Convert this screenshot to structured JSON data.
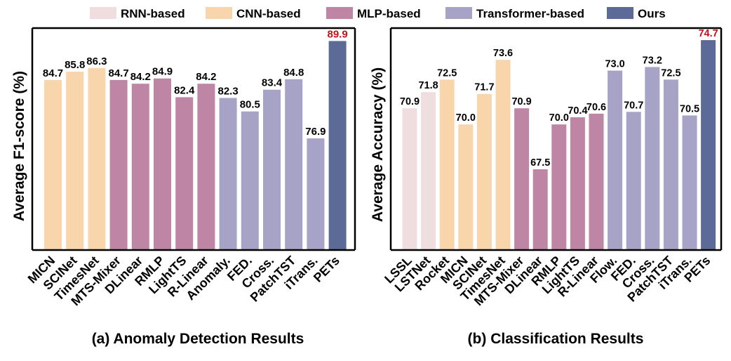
{
  "legend": {
    "items": [
      {
        "label": "RNN-based",
        "color": "#f0dde0"
      },
      {
        "label": "CNN-based",
        "color": "#f8d5aa"
      },
      {
        "label": "MLP-based",
        "color": "#be85a5"
      },
      {
        "label": "Transformer-based",
        "color": "#a6a3c6"
      },
      {
        "label": "Ours",
        "color": "#5c6a97"
      }
    ]
  },
  "highlight_color": "#c0141a",
  "chart_data": [
    {
      "type": "bar",
      "title": "(a) Anomaly Detection Results",
      "ylabel": "Average F1-score (%)",
      "xlabel": "",
      "ylim": [
        62,
        90.5
      ],
      "grid": false,
      "legend_position": "top",
      "categories": [
        "MICN",
        "SCINet",
        "TimesNet",
        "MTS-Mixer",
        "DLinear",
        "RMLP",
        "LightTS",
        "R-Linear",
        "Anomaly.",
        "FED.",
        "Cross.",
        "PatchTST",
        "iTrans.",
        "PETs"
      ],
      "values": [
        84.7,
        85.8,
        86.3,
        84.7,
        84.2,
        84.9,
        82.4,
        84.2,
        82.3,
        80.5,
        83.4,
        84.8,
        76.9,
        89.9
      ],
      "value_labels": [
        "84.7",
        "85.8",
        "86.3",
        "84.7",
        "84.2",
        "84.9",
        "82.4",
        "84.2",
        "82.3",
        "80.5",
        "83.4",
        "84.8",
        "76.9",
        "89.9"
      ],
      "groups": [
        1,
        1,
        1,
        2,
        2,
        2,
        2,
        2,
        3,
        3,
        3,
        3,
        3,
        4
      ],
      "highlight": [
        13
      ]
    },
    {
      "type": "bar",
      "title": "(b) Classification Results",
      "ylabel": "Average Accuracy (%)",
      "xlabel": "",
      "ylim": [
        63,
        74.9
      ],
      "grid": false,
      "legend_position": "top",
      "categories": [
        "LSSL",
        "LSTNet",
        "Rocket",
        "MICN",
        "SCINet",
        "TimesNet",
        "MTS-Mixer",
        "DLinear",
        "RMLP",
        "LightTS",
        "R-Linear",
        "Flow.",
        "FED.",
        "Cross.",
        "PatchTST",
        "iTrans.",
        "PETs"
      ],
      "values": [
        70.9,
        71.8,
        72.5,
        70.0,
        71.7,
        73.6,
        70.9,
        67.5,
        70.0,
        70.4,
        70.6,
        73.0,
        70.7,
        73.2,
        72.5,
        70.5,
        74.7
      ],
      "value_labels": [
        "70.9",
        "71.8",
        "72.5",
        "70.0",
        "71.7",
        "73.6",
        "70.9",
        "67.5",
        "70.0",
        "70.4",
        "70.6",
        "73.0",
        "70.7",
        "73.2",
        "72.5",
        "70.5",
        "74.7"
      ],
      "groups": [
        0,
        0,
        1,
        1,
        1,
        1,
        2,
        2,
        2,
        2,
        2,
        3,
        3,
        3,
        3,
        3,
        4
      ],
      "highlight": [
        16
      ]
    }
  ]
}
